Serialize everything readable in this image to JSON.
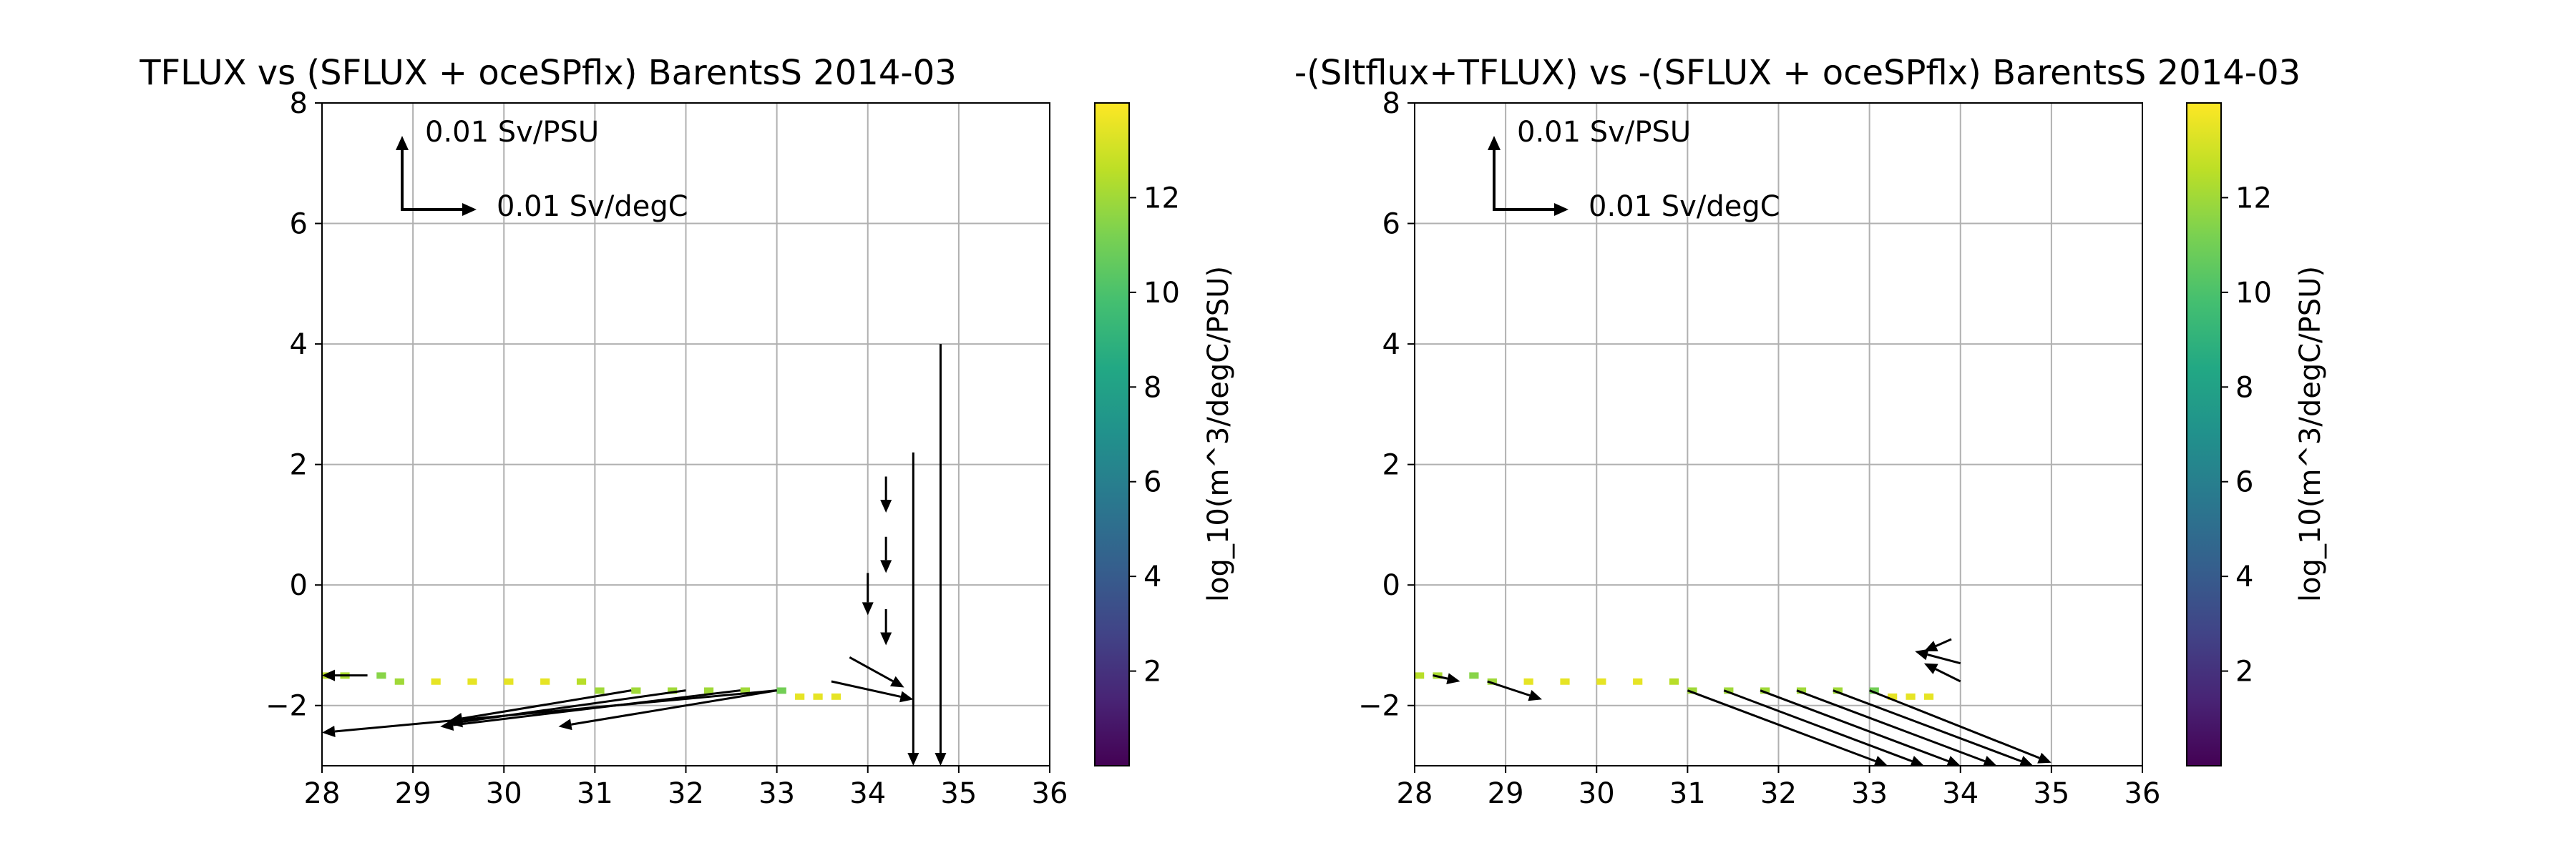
{
  "chart_data": [
    {
      "type": "heatmap",
      "title": "TFLUX vs (SFLUX + oceSPflx) BarentsS 2014-03",
      "xlim": [
        28,
        36
      ],
      "ylim": [
        -3,
        8
      ],
      "xticks": [
        "28",
        "29",
        "30",
        "31",
        "32",
        "33",
        "34",
        "35",
        "36"
      ],
      "yticks": [
        "8",
        "6",
        "4",
        "2",
        "0",
        "−2"
      ],
      "grid": true,
      "colorbar": {
        "label": "log_10(m^3/degC/PSU)",
        "ticks": [
          "2",
          "4",
          "6",
          "8",
          "10",
          "12"
        ],
        "range": [
          0,
          14
        ],
        "colormap": "viridis"
      },
      "quiver_key": {
        "vertical_label": "0.01 Sv/PSU",
        "horizontal_label": "0.01 Sv/degC"
      },
      "cells": [
        {
          "s": 28.0,
          "t": -1.5,
          "v": 12.5
        },
        {
          "s": 28.2,
          "t": -1.5,
          "v": 12.2
        },
        {
          "s": 28.6,
          "t": -1.5,
          "v": 11.5
        },
        {
          "s": 28.8,
          "t": -1.6,
          "v": 12.0
        },
        {
          "s": 29.2,
          "t": -1.6,
          "v": 13.5
        },
        {
          "s": 29.6,
          "t": -1.6,
          "v": 13.5
        },
        {
          "s": 30.0,
          "t": -1.6,
          "v": 13.5
        },
        {
          "s": 30.4,
          "t": -1.6,
          "v": 13.5
        },
        {
          "s": 30.8,
          "t": -1.6,
          "v": 12.5
        },
        {
          "s": 31.0,
          "t": -1.75,
          "v": 12.0
        },
        {
          "s": 31.4,
          "t": -1.75,
          "v": 12.0
        },
        {
          "s": 31.8,
          "t": -1.75,
          "v": 12.0
        },
        {
          "s": 32.2,
          "t": -1.75,
          "v": 12.0
        },
        {
          "s": 32.6,
          "t": -1.75,
          "v": 12.0
        },
        {
          "s": 33.0,
          "t": -1.75,
          "v": 11.0
        },
        {
          "s": 33.2,
          "t": -1.85,
          "v": 13.5
        },
        {
          "s": 33.4,
          "t": -1.85,
          "v": 13.5
        },
        {
          "s": 33.6,
          "t": -1.85,
          "v": 13.5
        }
      ],
      "arrows": [
        {
          "s": 28.5,
          "t": -1.5,
          "ds": -0.5,
          "dt": 0.0
        },
        {
          "s": 33.0,
          "t": -1.75,
          "ds": -5.0,
          "dt": -0.7
        },
        {
          "s": 32.6,
          "t": -1.75,
          "ds": -3.3,
          "dt": -0.6
        },
        {
          "s": 32.0,
          "t": -1.75,
          "ds": -2.6,
          "dt": -0.55
        },
        {
          "s": 31.4,
          "t": -1.75,
          "ds": -2.0,
          "dt": -0.5
        },
        {
          "s": 33.0,
          "t": -1.75,
          "ds": -2.4,
          "dt": -0.6
        },
        {
          "s": 34.8,
          "t": 4.0,
          "ds": 0.0,
          "dt": -7.0
        },
        {
          "s": 34.5,
          "t": 2.2,
          "ds": 0.0,
          "dt": -5.2
        },
        {
          "s": 34.2,
          "t": 1.8,
          "ds": 0.0,
          "dt": -0.6
        },
        {
          "s": 34.2,
          "t": 0.8,
          "ds": 0.0,
          "dt": -0.6
        },
        {
          "s": 34.0,
          "t": 0.2,
          "ds": 0.0,
          "dt": -0.7
        },
        {
          "s": 34.2,
          "t": -0.4,
          "ds": 0.0,
          "dt": -0.6
        },
        {
          "s": 33.8,
          "t": -1.2,
          "ds": 0.6,
          "dt": -0.5
        },
        {
          "s": 33.6,
          "t": -1.6,
          "ds": 0.9,
          "dt": -0.3
        }
      ]
    },
    {
      "type": "heatmap",
      "title": "-(SItflux+TFLUX) vs -(SFLUX + oceSPflx) BarentsS 2014-03",
      "xlim": [
        28,
        36
      ],
      "ylim": [
        -3,
        8
      ],
      "xticks": [
        "28",
        "29",
        "30",
        "31",
        "32",
        "33",
        "34",
        "35",
        "36"
      ],
      "yticks": [
        "8",
        "6",
        "4",
        "2",
        "0",
        "−2"
      ],
      "grid": true,
      "colorbar": {
        "label": "log_10(m^3/degC/PSU)",
        "ticks": [
          "2",
          "4",
          "6",
          "8",
          "10",
          "12"
        ],
        "range": [
          0,
          14
        ],
        "colormap": "viridis"
      },
      "quiver_key": {
        "vertical_label": "0.01 Sv/PSU",
        "horizontal_label": "0.01 Sv/degC"
      },
      "cells": [
        {
          "s": 28.0,
          "t": -1.5,
          "v": 12.5
        },
        {
          "s": 28.2,
          "t": -1.5,
          "v": 12.2
        },
        {
          "s": 28.6,
          "t": -1.5,
          "v": 11.5
        },
        {
          "s": 28.8,
          "t": -1.6,
          "v": 12.0
        },
        {
          "s": 29.2,
          "t": -1.6,
          "v": 13.5
        },
        {
          "s": 29.6,
          "t": -1.6,
          "v": 13.5
        },
        {
          "s": 30.0,
          "t": -1.6,
          "v": 13.5
        },
        {
          "s": 30.4,
          "t": -1.6,
          "v": 13.5
        },
        {
          "s": 30.8,
          "t": -1.6,
          "v": 12.5
        },
        {
          "s": 31.0,
          "t": -1.75,
          "v": 12.0
        },
        {
          "s": 31.4,
          "t": -1.75,
          "v": 12.0
        },
        {
          "s": 31.8,
          "t": -1.75,
          "v": 12.0
        },
        {
          "s": 32.2,
          "t": -1.75,
          "v": 12.0
        },
        {
          "s": 32.6,
          "t": -1.75,
          "v": 12.0
        },
        {
          "s": 33.0,
          "t": -1.75,
          "v": 11.0
        },
        {
          "s": 33.2,
          "t": -1.85,
          "v": 13.5
        },
        {
          "s": 33.4,
          "t": -1.85,
          "v": 13.5
        },
        {
          "s": 33.6,
          "t": -1.85,
          "v": 13.5
        }
      ],
      "arrows": [
        {
          "s": 28.2,
          "t": -1.5,
          "ds": 0.3,
          "dt": -0.1
        },
        {
          "s": 28.8,
          "t": -1.6,
          "ds": 0.6,
          "dt": -0.3
        },
        {
          "s": 31.0,
          "t": -1.75,
          "ds": 2.2,
          "dt": -1.25
        },
        {
          "s": 31.4,
          "t": -1.75,
          "ds": 2.2,
          "dt": -1.25
        },
        {
          "s": 31.8,
          "t": -1.75,
          "ds": 2.2,
          "dt": -1.25
        },
        {
          "s": 32.2,
          "t": -1.75,
          "ds": 2.2,
          "dt": -1.25
        },
        {
          "s": 32.6,
          "t": -1.75,
          "ds": 2.2,
          "dt": -1.25
        },
        {
          "s": 33.0,
          "t": -1.75,
          "ds": 2.0,
          "dt": -1.2
        },
        {
          "s": 33.9,
          "t": -0.9,
          "ds": -0.3,
          "dt": -0.2
        },
        {
          "s": 34.0,
          "t": -1.3,
          "ds": -0.5,
          "dt": 0.2
        },
        {
          "s": 34.0,
          "t": -1.6,
          "ds": -0.4,
          "dt": 0.3
        }
      ]
    }
  ]
}
